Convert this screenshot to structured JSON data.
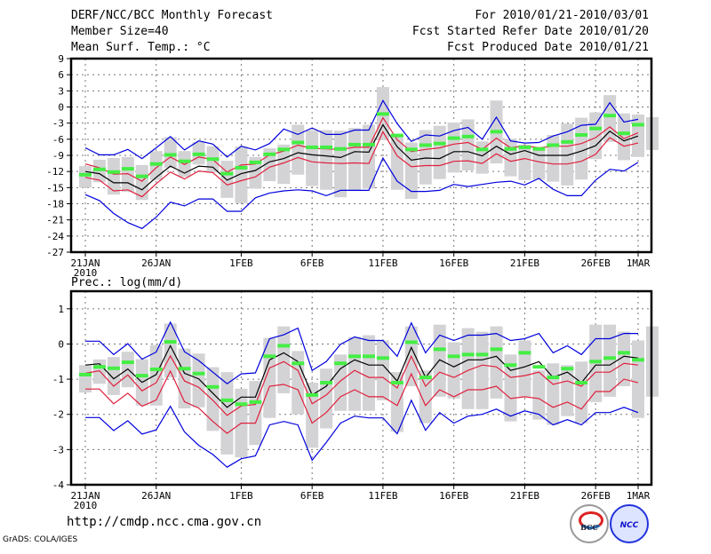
{
  "header": {
    "title": "DERF/NCC/BCC Monthly Forecast",
    "member_size": "Member Size=40",
    "variable": "Mean Surf. Temp.: °C",
    "period": "For 2010/01/21-2010/03/01",
    "start_date": "Fcst Started Refer Date 2010/01/20",
    "produced_date": "Fcst Produced Date 2010/01/21"
  },
  "precip_label": "Prec.: log(mm/d)",
  "footer": {
    "url": "http://cmdp.ncc.cma.gov.cn",
    "credit": "GrADS: COLA/IGES",
    "logos": [
      "BCC",
      "NCC"
    ]
  },
  "colors": {
    "mean": "#000000",
    "inner": "#e0203c",
    "outer": "#0000dd",
    "box": "#d3d3d6",
    "marker": "#44ee44"
  },
  "chart_data": [
    {
      "type": "line",
      "title": "Mean Surf. Temp.: °C",
      "xlabel": "",
      "ylabel": "",
      "x_ticks": [
        {
          "day": 0,
          "label": "21JAN",
          "sub": "2010"
        },
        {
          "day": 5,
          "label": "26JAN"
        },
        {
          "day": 11,
          "label": "1FEB"
        },
        {
          "day": 16,
          "label": "6FEB"
        },
        {
          "day": 21,
          "label": "11FEB"
        },
        {
          "day": 26,
          "label": "16FEB"
        },
        {
          "day": 31,
          "label": "21FEB"
        },
        {
          "day": 36,
          "label": "26FEB"
        },
        {
          "day": 39,
          "label": "1MAR"
        }
      ],
      "y_ticks": [
        9,
        6,
        3,
        0,
        -3,
        -6,
        -9,
        -12,
        -15,
        -18,
        -21,
        -24,
        -27
      ],
      "ylim": [
        -27,
        9
      ],
      "grid": true,
      "n_days": 40,
      "series": [
        {
          "name": "ensemble mean",
          "values": [
            -12,
            -12.4,
            -14.1,
            -14.1,
            -15.4,
            -13.1,
            -11,
            -12.3,
            -11,
            -11.2,
            -13.6,
            -12.4,
            -11.8,
            -10.2,
            -9.6,
            -8.5,
            -8.9,
            -9.1,
            -9.4,
            -8.3,
            -8.4,
            -3.3,
            -7.4,
            -9.9,
            -9.5,
            -9.6,
            -8.3,
            -8.3,
            -9.1,
            -7.3,
            -8.8,
            -8.1,
            -9,
            -9,
            -9,
            -8.2,
            -7.2,
            -4.5,
            -6.3,
            -5.4,
            -5.4
          ],
          "role": "mean"
        },
        {
          "name": "upper inner",
          "values": [
            -10.6,
            -11.3,
            -12.5,
            -12.4,
            -13.8,
            -11.3,
            -9.3,
            -10.7,
            -9.3,
            -9.8,
            -12.1,
            -10.8,
            -10.6,
            -8.9,
            -8.2,
            -7.1,
            -7.7,
            -7.8,
            -7.9,
            -7.5,
            -7.5,
            -2,
            -6.1,
            -8.3,
            -7.9,
            -7.6,
            -6.9,
            -6.6,
            -7.9,
            -5.8,
            -7.6,
            -7.2,
            -7.6,
            -7.3,
            -7.3,
            -6.8,
            -5.7,
            -3.7,
            -5.9,
            -4.8,
            -4.7
          ],
          "role": "inner"
        },
        {
          "name": "lower inner",
          "values": [
            -13.1,
            -13.6,
            -15.6,
            -15.4,
            -16.7,
            -14.3,
            -12.1,
            -13.4,
            -11.9,
            -12.2,
            -14.5,
            -13.7,
            -13,
            -11.2,
            -10.4,
            -9.4,
            -10.2,
            -10.4,
            -10.5,
            -10.4,
            -10.5,
            -4.6,
            -9.1,
            -11.1,
            -10.9,
            -10.9,
            -10.1,
            -10,
            -10.5,
            -8.7,
            -10.1,
            -9.6,
            -10.2,
            -10.6,
            -10.6,
            -10.1,
            -8.8,
            -5.7,
            -7.3,
            -6.7,
            -6.8
          ],
          "role": "inner"
        },
        {
          "name": "upper outer",
          "values": [
            -7.6,
            -8.9,
            -8.9,
            -7.9,
            -9.6,
            -7.6,
            -5.5,
            -8,
            -6.3,
            -6.9,
            -9.3,
            -7.3,
            -8,
            -6.8,
            -4.1,
            -5.1,
            -3.9,
            -5.1,
            -5.1,
            -4.3,
            -4.3,
            1.2,
            -3.1,
            -6.4,
            -5.2,
            -5.4,
            -4.4,
            -3.8,
            -6,
            -1.9,
            -6.3,
            -6.7,
            -6.6,
            -5.4,
            -4.6,
            -3.4,
            -3.2,
            0.8,
            -2.8,
            -2.3,
            -2.3
          ],
          "role": "outer"
        },
        {
          "name": "lower outer",
          "values": [
            -16.3,
            -17.4,
            -19.8,
            -21.5,
            -22.6,
            -20.5,
            -17.7,
            -18.4,
            -17.1,
            -17.1,
            -19.4,
            -19.4,
            -16.9,
            -16,
            -15.6,
            -15.4,
            -15.6,
            -16.5,
            -15.5,
            -15.5,
            -15.5,
            -9.5,
            -13.8,
            -15.7,
            -15.7,
            -15.5,
            -14.4,
            -14.8,
            -14.4,
            -14,
            -13.8,
            -14.5,
            -13.3,
            -15.3,
            -16.5,
            -16.5,
            -13.6,
            -11.6,
            -11.9,
            -10.3,
            -10.3
          ],
          "role": "outer"
        }
      ],
      "markers": [
        -12.6,
        -11.6,
        -12.1,
        -11.5,
        -12.9,
        -10.6,
        -8.9,
        -10.1,
        -8.8,
        -9.7,
        -12.4,
        -11.3,
        -10.3,
        -8.8,
        -7.9,
        -6.6,
        -7.5,
        -7.5,
        -7.8,
        -7,
        -7,
        -1.3,
        -5.3,
        -7.9,
        -7.1,
        -6.8,
        -5.8,
        -5.5,
        -7.9,
        -4.6,
        -7.8,
        -7.5,
        -7.8,
        -7.1,
        -6.5,
        -5.2,
        -4,
        -1.6,
        -4.9,
        -3.3,
        -3.8
      ],
      "boxes": [
        [
          -15,
          -11
        ],
        [
          -14,
          -9.8
        ],
        [
          -16.3,
          -9.5
        ],
        [
          -15.8,
          -9.3
        ],
        [
          -17.3,
          -10.8
        ],
        [
          -13.6,
          -8.2
        ],
        [
          -11.3,
          -5.6
        ],
        [
          -13,
          -8.2
        ],
        [
          -10.7,
          -6.5
        ],
        [
          -12.2,
          -7.3
        ],
        [
          -16.9,
          -10
        ],
        [
          -17.9,
          -7.4
        ],
        [
          -15.2,
          -9.3
        ],
        [
          -13.8,
          -7.7
        ],
        [
          -14.3,
          -7
        ],
        [
          -12.6,
          -3.3
        ],
        [
          -14.7,
          -4.3
        ],
        [
          -15.4,
          -4.3
        ],
        [
          -16.8,
          -4.4
        ],
        [
          -15.5,
          -3.9
        ],
        [
          -15.2,
          -3.3
        ],
        [
          -6.2,
          3.7
        ],
        [
          -15.4,
          -5.2
        ],
        [
          -17.1,
          -6.6
        ],
        [
          -14.4,
          -4.3
        ],
        [
          -13.4,
          -3.5
        ],
        [
          -12.2,
          -2.9
        ],
        [
          -11.8,
          -2.3
        ],
        [
          -12.4,
          -6.4
        ],
        [
          -10.5,
          1.2
        ],
        [
          -12.9,
          -5.9
        ],
        [
          -13.6,
          -7
        ],
        [
          -13.5,
          -8
        ],
        [
          -13.9,
          -5.2
        ],
        [
          -14.6,
          -3.1
        ],
        [
          -13.5,
          -2
        ],
        [
          -9.7,
          -1
        ],
        [
          -6.5,
          2.2
        ],
        [
          -9.9,
          -1.2
        ],
        [
          -9.3,
          -1.4
        ],
        [
          -8,
          -1.9
        ]
      ]
    },
    {
      "type": "line",
      "title": "Prec.: log(mm/d)",
      "xlabel": "",
      "ylabel": "",
      "x_ticks": [
        {
          "day": 0,
          "label": "21JAN",
          "sub": "2010"
        },
        {
          "day": 5,
          "label": "26JAN"
        },
        {
          "day": 11,
          "label": "1FEB"
        },
        {
          "day": 16,
          "label": "6FEB"
        },
        {
          "day": 21,
          "label": "11FEB"
        },
        {
          "day": 26,
          "label": "16FEB"
        },
        {
          "day": 31,
          "label": "21FEB"
        },
        {
          "day": 36,
          "label": "26FEB"
        },
        {
          "day": 39,
          "label": "1MAR"
        }
      ],
      "y_ticks": [
        1,
        0,
        -1,
        -2,
        -3,
        -4
      ],
      "ylim": [
        -4,
        1.5
      ],
      "grid": true,
      "n_days": 40,
      "series": [
        {
          "name": "ensemble mean",
          "values": [
            -0.6,
            -0.56,
            -0.99,
            -0.71,
            -1.09,
            -0.87,
            -0.05,
            -0.83,
            -0.99,
            -1.4,
            -1.8,
            -1.51,
            -1.51,
            -0.45,
            -0.25,
            -0.5,
            -1.45,
            -1.2,
            -0.7,
            -0.45,
            -0.6,
            -0.6,
            -1.05,
            -0.1,
            -0.95,
            -0.45,
            -0.65,
            -0.45,
            -0.45,
            -0.35,
            -0.75,
            -0.65,
            -0.5,
            -0.95,
            -0.8,
            -1.1,
            -0.6,
            -0.6,
            -0.35,
            -0.4,
            -0.4
          ],
          "role": "mean"
        },
        {
          "name": "upper inner",
          "values": [
            -0.83,
            -0.76,
            -1.2,
            -0.88,
            -1.33,
            -1.1,
            -0.34,
            -1.05,
            -1.23,
            -1.6,
            -2.03,
            -1.76,
            -1.72,
            -0.68,
            -0.5,
            -0.75,
            -1.7,
            -1.45,
            -1.05,
            -0.75,
            -0.95,
            -0.95,
            -1.25,
            -0.35,
            -1.2,
            -0.8,
            -0.95,
            -0.75,
            -0.6,
            -0.65,
            -0.95,
            -0.9,
            -0.8,
            -1.15,
            -1.05,
            -1.2,
            -0.8,
            -0.8,
            -0.55,
            -0.6,
            -0.6
          ],
          "role": "inner"
        },
        {
          "name": "lower inner",
          "values": [
            -1.28,
            -1.28,
            -1.7,
            -1.4,
            -1.77,
            -1.59,
            -0.77,
            -1.64,
            -1.82,
            -2.2,
            -2.54,
            -2.25,
            -2.25,
            -1.2,
            -1.15,
            -1.3,
            -2.25,
            -1.95,
            -1.5,
            -1.3,
            -1.5,
            -1.5,
            -1.75,
            -0.85,
            -1.75,
            -1.3,
            -1.5,
            -1.3,
            -1.3,
            -1.2,
            -1.55,
            -1.5,
            -1.55,
            -1.8,
            -1.65,
            -1.85,
            -1.35,
            -1.35,
            -1.0,
            -1.1,
            -1.1
          ],
          "role": "inner"
        },
        {
          "name": "upper outer",
          "values": [
            0.08,
            0.08,
            -0.3,
            0.01,
            -0.43,
            -0.23,
            0.62,
            -0.22,
            -0.47,
            -0.8,
            -1.13,
            -0.85,
            -0.82,
            0.15,
            0.26,
            0.45,
            -0.75,
            -0.5,
            -0.01,
            0.2,
            0.1,
            0.1,
            -0.35,
            0.6,
            -0.25,
            0.25,
            0.1,
            0.25,
            0.25,
            0.3,
            0.1,
            0.15,
            0.3,
            -0.25,
            -0.05,
            -0.3,
            0.15,
            0.15,
            0.3,
            0.3,
            0.3
          ],
          "role": "outer"
        },
        {
          "name": "lower outer",
          "values": [
            -2.09,
            -2.09,
            -2.46,
            -2.18,
            -2.56,
            -2.44,
            -1.77,
            -2.5,
            -2.88,
            -3.14,
            -3.5,
            -3.26,
            -3.18,
            -2.3,
            -2.2,
            -2.3,
            -3.3,
            -2.8,
            -2.25,
            -2.05,
            -2.1,
            -2.1,
            -2.55,
            -1.6,
            -2.45,
            -1.95,
            -2.25,
            -2.05,
            -2.0,
            -1.85,
            -2.05,
            -1.9,
            -2.0,
            -2.3,
            -2.15,
            -2.3,
            -1.95,
            -1.95,
            -1.8,
            -1.95,
            -1.75
          ],
          "role": "outer"
        }
      ],
      "markers": [
        -0.87,
        -0.65,
        -0.69,
        -0.52,
        -0.9,
        -0.72,
        0.06,
        -0.7,
        -0.84,
        -1.22,
        -1.6,
        -1.71,
        -1.65,
        -0.35,
        -0.05,
        -0.55,
        -1.45,
        -1.1,
        -0.55,
        -0.35,
        -0.35,
        -0.4,
        -1.1,
        0.05,
        -0.95,
        -0.15,
        -0.35,
        -0.3,
        -0.3,
        -0.15,
        -0.6,
        -0.25,
        -0.65,
        -0.95,
        -0.7,
        -1.1,
        -0.5,
        -0.4,
        -0.25,
        -0.45,
        -0.1
      ],
      "boxes": [
        [
          -1.38,
          -0.6
        ],
        [
          -1.13,
          -0.44
        ],
        [
          -1.45,
          -0.37
        ],
        [
          -1.23,
          -0.22
        ],
        [
          -1.75,
          -0.43
        ],
        [
          -1.75,
          -0.03
        ],
        [
          -0.95,
          0.58
        ],
        [
          -1.83,
          -0.13
        ],
        [
          -1.8,
          -0.27
        ],
        [
          -2.47,
          -0.66
        ],
        [
          -3.14,
          -0.8
        ],
        [
          -3.22,
          -1.27
        ],
        [
          -2.87,
          -1.05
        ],
        [
          -2.1,
          0.17
        ],
        [
          -1.4,
          0.5
        ],
        [
          -2.0,
          -0.2
        ],
        [
          -2.95,
          -1.1
        ],
        [
          -2.4,
          -0.7
        ],
        [
          -1.9,
          -0.3
        ],
        [
          -1.9,
          0.2
        ],
        [
          -1.9,
          0.25
        ],
        [
          -1.6,
          0.1
        ],
        [
          -2.5,
          -0.8
        ],
        [
          -1.2,
          0.5
        ],
        [
          -2.25,
          -0.75
        ],
        [
          -1.5,
          0.55
        ],
        [
          -1.55,
          0.05
        ],
        [
          -1.85,
          0.45
        ],
        [
          -1.85,
          0.35
        ],
        [
          -1.55,
          0.5
        ],
        [
          -2.2,
          -0.3
        ],
        [
          -1.5,
          0.1
        ],
        [
          -2.15,
          -0.75
        ],
        [
          -2.3,
          -0.55
        ],
        [
          -2.05,
          -0.6
        ],
        [
          -2.25,
          -0.5
        ],
        [
          -1.65,
          0.55
        ],
        [
          -1.5,
          0.55
        ],
        [
          -1.2,
          0.35
        ],
        [
          -2.1,
          0.1
        ],
        [
          -1.5,
          0.5
        ]
      ]
    }
  ]
}
